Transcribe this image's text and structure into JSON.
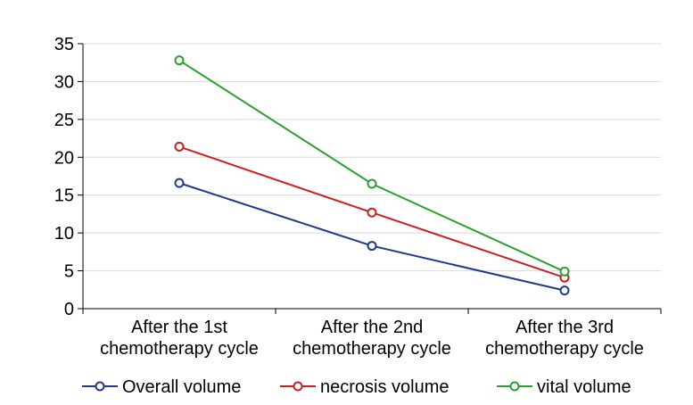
{
  "chart_data": {
    "type": "line",
    "categories": [
      [
        "After the 1st",
        "chemotherapy cycle"
      ],
      [
        "After the 2nd",
        "chemotherapy cycle"
      ],
      [
        "After the 3rd",
        "chemotherapy cycle"
      ]
    ],
    "ylim": [
      0,
      35
    ],
    "yticks": [
      "0",
      "5",
      "10",
      "15",
      "20",
      "25",
      "30",
      "35"
    ],
    "grid": true,
    "legend_position": "bottom",
    "series": [
      {
        "name": "Overall volume",
        "color": "#1f3a8a",
        "values": [
          16.6,
          8.3,
          2.4
        ]
      },
      {
        "name": "necrosis volume",
        "color": "#cc1f1f",
        "values": [
          21.4,
          12.7,
          4.1
        ]
      },
      {
        "name": "vital volume",
        "color": "#2ca02c",
        "values": [
          32.8,
          16.5,
          4.9
        ]
      }
    ]
  }
}
